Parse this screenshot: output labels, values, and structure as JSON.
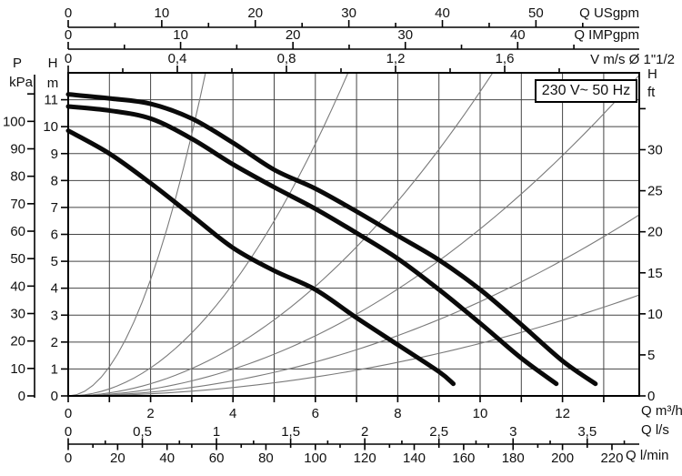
{
  "chart_data": {
    "type": "line",
    "title": "",
    "annotation_box": "230 V~ 50 Hz",
    "x_unit_base": "m3/h",
    "x_range_m3h": [
      0,
      13.86
    ],
    "y_unit_base": "m",
    "y_range_m": [
      0,
      12
    ],
    "grid": "on",
    "x_axes_top": [
      {
        "id": "usgpm",
        "unit_label": "Q USgpm",
        "m3h_per_unit": 0.2271,
        "major_values": [
          0,
          10,
          20,
          30,
          40,
          50
        ],
        "major_labels": [
          "0",
          "10",
          "20",
          "30",
          "40",
          "50"
        ],
        "minor_values": [
          5,
          15,
          25,
          35,
          45,
          55
        ]
      },
      {
        "id": "impgpm",
        "unit_label": "Q IMPgpm",
        "m3h_per_unit": 0.2728,
        "major_values": [
          0,
          10,
          20,
          30,
          40
        ],
        "major_labels": [
          "0",
          "10",
          "20",
          "30",
          "40"
        ],
        "minor_values": [
          5,
          15,
          25,
          35,
          45
        ]
      },
      {
        "id": "vms",
        "unit_label": "V m/s Ø 1\"1/2",
        "m3h_per_unit": 6.6225,
        "major_values": [
          0,
          0.4,
          0.8,
          1.2,
          1.6
        ],
        "major_labels": [
          "0",
          "0,4",
          "0,8",
          "1,2",
          "1,6"
        ],
        "minor_values": [
          0.2,
          0.6,
          1.0,
          1.4,
          1.8
        ]
      }
    ],
    "x_axes_bottom": [
      {
        "id": "m3h",
        "unit_label": "Q m³/h",
        "m3h_per_unit": 1,
        "major_values": [
          0,
          2,
          4,
          6,
          8,
          10,
          12
        ],
        "major_labels": [
          "0",
          "2",
          "4",
          "6",
          "8",
          "10",
          "12"
        ],
        "minor_values": [
          1,
          3,
          5,
          7,
          9,
          11,
          13
        ]
      },
      {
        "id": "ls",
        "unit_label": "Q l/s",
        "m3h_per_unit": 3.6,
        "major_values": [
          0,
          0.5,
          1,
          1.5,
          2,
          2.5,
          3,
          3.5
        ],
        "major_labels": [
          "0",
          "0,5",
          "1",
          "1,5",
          "2",
          "2,5",
          "3",
          "3,5"
        ],
        "minor_values": [
          0.25,
          0.75,
          1.25,
          1.75,
          2.25,
          2.75,
          3.25,
          3.75
        ]
      },
      {
        "id": "lmin",
        "unit_label": "Q l/min",
        "m3h_per_unit": 0.06,
        "major_values": [
          0,
          20,
          40,
          60,
          80,
          100,
          120,
          140,
          160,
          180,
          200,
          220
        ],
        "major_labels": [
          "0",
          "20",
          "40",
          "60",
          "80",
          "100",
          "120",
          "140",
          "160",
          "180",
          "200",
          "220"
        ],
        "minor_values": [
          10,
          30,
          50,
          70,
          90,
          110,
          130,
          150,
          170,
          190,
          210
        ]
      }
    ],
    "y_axes": [
      {
        "id": "kpa",
        "symbol": "P",
        "unit": "kPa",
        "m_per_unit": 0.10197,
        "major_values": [
          0,
          10,
          20,
          30,
          40,
          50,
          60,
          70,
          80,
          90,
          100
        ],
        "major_labels": [
          "0",
          "10",
          "20",
          "30",
          "40",
          "50",
          "60",
          "70",
          "80",
          "90",
          "100"
        ],
        "extra_tick_values": [
          110
        ]
      },
      {
        "id": "m",
        "symbol": "H",
        "unit": "m",
        "m_per_unit": 1,
        "major_values": [
          0,
          1,
          2,
          3,
          4,
          5,
          6,
          7,
          8,
          9,
          10,
          11
        ],
        "major_labels": [
          "0",
          "1",
          "2",
          "3",
          "4",
          "5",
          "6",
          "7",
          "8",
          "9",
          "10",
          "11"
        ],
        "extra_tick_values": []
      },
      {
        "id": "ft",
        "symbol": "H",
        "unit": "ft",
        "m_per_unit": 0.3048,
        "major_values": [
          0,
          5,
          10,
          15,
          20,
          25,
          30
        ],
        "major_labels": [
          "0",
          "5",
          "10",
          "15",
          "20",
          "25",
          "30"
        ],
        "extra_tick_values": [
          35
        ]
      }
    ],
    "pump_curves": [
      {
        "name": "curve-top",
        "points_q_h": [
          [
            0,
            11.2
          ],
          [
            1,
            11.05
          ],
          [
            2,
            10.85
          ],
          [
            3,
            10.3
          ],
          [
            4,
            9.4
          ],
          [
            5,
            8.4
          ],
          [
            6,
            7.7
          ],
          [
            7,
            6.85
          ],
          [
            8,
            5.95
          ],
          [
            9,
            5.05
          ],
          [
            10,
            3.95
          ],
          [
            11,
            2.65
          ],
          [
            12,
            1.3
          ],
          [
            12.8,
            0.45
          ]
        ]
      },
      {
        "name": "curve-middle",
        "points_q_h": [
          [
            0,
            10.75
          ],
          [
            1,
            10.6
          ],
          [
            2,
            10.3
          ],
          [
            3,
            9.55
          ],
          [
            4,
            8.6
          ],
          [
            5,
            7.75
          ],
          [
            6,
            6.95
          ],
          [
            7,
            6.05
          ],
          [
            8,
            5.1
          ],
          [
            9,
            3.95
          ],
          [
            10,
            2.7
          ],
          [
            11,
            1.4
          ],
          [
            11.85,
            0.45
          ]
        ]
      },
      {
        "name": "curve-bottom",
        "points_q_h": [
          [
            0,
            9.85
          ],
          [
            1,
            9.0
          ],
          [
            2,
            7.9
          ],
          [
            3,
            6.7
          ],
          [
            4,
            5.5
          ],
          [
            5,
            4.65
          ],
          [
            6,
            3.95
          ],
          [
            7,
            2.9
          ],
          [
            8,
            1.9
          ],
          [
            9,
            0.9
          ],
          [
            9.35,
            0.45
          ]
        ]
      }
    ],
    "system_curves": {
      "formula": "H = k × Q²",
      "k_values": [
        1.08,
        0.26,
        0.113,
        0.062,
        0.035,
        0.0195
      ]
    }
  }
}
